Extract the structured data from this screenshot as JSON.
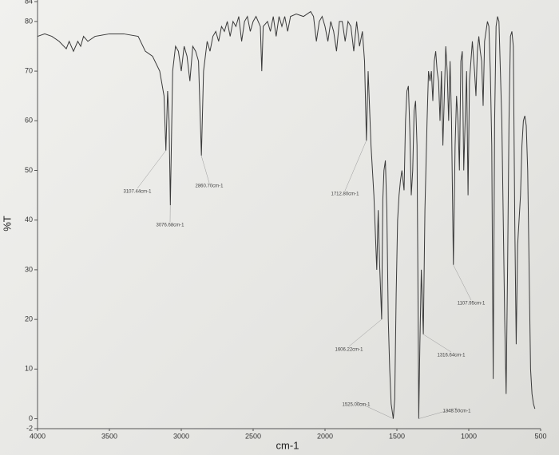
{
  "chart_data": {
    "type": "line",
    "x_label": "cm-1",
    "y_label": "%T",
    "xlim": [
      4000,
      500
    ],
    "ylim": [
      -2,
      84
    ],
    "xticks": [
      4000,
      3500,
      3000,
      2500,
      2000,
      1500,
      1000,
      500
    ],
    "yticks": [
      -2,
      0,
      10,
      20,
      30,
      40,
      50,
      60,
      70,
      80,
      84
    ],
    "color": "#3a3a3a",
    "x": [
      4000,
      3950,
      3900,
      3850,
      3800,
      3780,
      3750,
      3720,
      3700,
      3680,
      3650,
      3600,
      3500,
      3400,
      3300,
      3250,
      3200,
      3150,
      3120,
      3107,
      3095,
      3085,
      3076,
      3060,
      3040,
      3020,
      3000,
      2980,
      2960,
      2940,
      2920,
      2900,
      2880,
      2860,
      2845,
      2820,
      2800,
      2780,
      2760,
      2740,
      2720,
      2700,
      2680,
      2660,
      2640,
      2620,
      2600,
      2580,
      2560,
      2540,
      2520,
      2500,
      2480,
      2450,
      2440,
      2430,
      2400,
      2380,
      2360,
      2340,
      2320,
      2300,
      2280,
      2260,
      2240,
      2200,
      2150,
      2100,
      2080,
      2060,
      2040,
      2020,
      2000,
      1980,
      1960,
      1940,
      1920,
      1900,
      1880,
      1860,
      1840,
      1820,
      1800,
      1780,
      1760,
      1740,
      1725,
      1712,
      1700,
      1680,
      1660,
      1640,
      1630,
      1620,
      1606,
      1598,
      1590,
      1580,
      1570,
      1560,
      1550,
      1540,
      1525,
      1515,
      1505,
      1495,
      1485,
      1475,
      1465,
      1450,
      1440,
      1430,
      1420,
      1410,
      1400,
      1390,
      1380,
      1370,
      1360,
      1352,
      1348,
      1340,
      1330,
      1316,
      1305,
      1290,
      1280,
      1270,
      1260,
      1250,
      1240,
      1230,
      1220,
      1210,
      1200,
      1190,
      1180,
      1170,
      1160,
      1150,
      1140,
      1130,
      1120,
      1107,
      1095,
      1085,
      1075,
      1065,
      1055,
      1045,
      1035,
      1025,
      1015,
      1005,
      995,
      985,
      975,
      960,
      950,
      940,
      930,
      920,
      910,
      900,
      890,
      880,
      870,
      860,
      850,
      840,
      830,
      820,
      810,
      800,
      790,
      780,
      770,
      750,
      740,
      730,
      720,
      710,
      700,
      690,
      680,
      670,
      660,
      650,
      640,
      630,
      620,
      610,
      600,
      590,
      580,
      570,
      560,
      550,
      540
    ],
    "values": [
      77,
      77.5,
      77,
      76,
      74.5,
      76,
      74,
      76,
      75,
      77,
      76,
      77,
      77.5,
      77.5,
      77,
      74,
      73,
      70,
      65,
      54,
      66,
      60,
      43,
      70,
      75,
      74,
      70,
      75,
      73,
      68,
      75,
      74,
      72,
      53,
      70,
      76,
      74,
      77,
      78,
      76,
      79,
      78,
      80,
      77,
      80,
      79,
      81,
      76,
      80,
      81,
      78,
      80,
      81,
      79,
      70,
      79,
      80,
      78,
      81,
      77,
      81,
      79,
      81,
      78,
      81,
      81.5,
      81,
      82,
      81,
      76,
      80,
      81,
      79,
      76,
      80,
      78,
      74,
      80,
      80,
      76,
      80,
      79,
      74,
      80,
      75,
      78,
      72,
      56,
      70,
      55,
      45,
      30,
      42,
      31,
      20,
      44,
      50,
      52,
      42,
      20,
      10,
      3,
      0,
      4,
      25,
      40,
      45,
      48,
      50,
      46,
      60,
      66,
      67,
      58,
      45,
      50,
      62,
      64,
      55,
      20,
      0,
      15,
      30,
      17,
      42,
      60,
      70,
      68,
      70,
      64,
      72,
      74,
      70,
      68,
      60,
      70,
      55,
      65,
      75,
      70,
      60,
      72,
      60,
      31,
      55,
      65,
      60,
      50,
      72,
      74,
      50,
      60,
      70,
      45,
      68,
      72,
      76,
      70,
      65,
      74,
      77,
      74,
      72,
      63,
      76,
      78,
      80,
      79,
      70,
      55,
      8,
      60,
      79,
      81,
      80,
      70,
      60,
      20,
      5,
      30,
      60,
      77,
      78,
      75,
      40,
      15,
      35,
      40,
      45,
      55,
      60,
      61,
      59,
      50,
      30,
      10,
      5,
      3,
      2
    ],
    "annotations": [
      {
        "text": "3107.44cm-1",
        "x": 3107.44,
        "y": 54
      },
      {
        "text": "3076.68cm-1",
        "x": 3076.68,
        "y": 43
      },
      {
        "text": "2860.70cm-1",
        "x": 2860.7,
        "y": 53
      },
      {
        "text": "1712.80cm-1",
        "x": 1712.8,
        "y": 56
      },
      {
        "text": "1606.22cm-1",
        "x": 1606.22,
        "y": 20
      },
      {
        "text": "1525.00cm-1",
        "x": 1525.0,
        "y": 0
      },
      {
        "text": "1316.64cm-1",
        "x": 1316.64,
        "y": 17
      },
      {
        "text": "1348.50cm-1",
        "x": 1348.5,
        "y": 0
      },
      {
        "text": "1107.95cm-1",
        "x": 1107.95,
        "y": 31
      }
    ]
  }
}
